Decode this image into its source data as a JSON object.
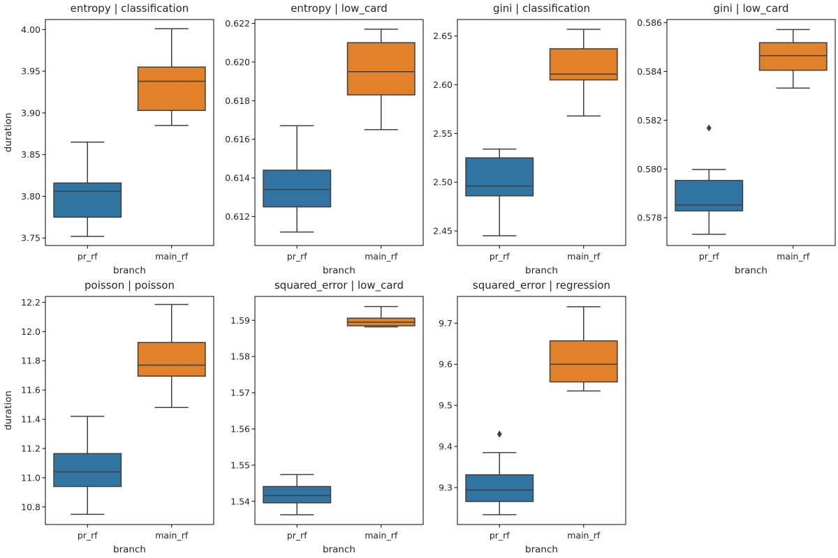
{
  "chart_data": [
    {
      "type": "box",
      "title": "entropy | classification",
      "xlabel": "branch",
      "ylabel": "duration",
      "categories": [
        "pr_rf",
        "main_rf"
      ],
      "ylim": [
        3.741,
        4.012
      ],
      "yticks": [
        3.75,
        3.8,
        3.85,
        3.9,
        3.95,
        4.0
      ],
      "ytick_labels": [
        "3.75",
        "3.80",
        "3.85",
        "3.90",
        "3.95",
        "4.00"
      ],
      "boxes": [
        {
          "name": "pr_rf",
          "whisker_low": 3.752,
          "q1": 3.775,
          "median": 3.806,
          "q3": 3.816,
          "whisker_high": 3.865,
          "outliers": []
        },
        {
          "name": "main_rf",
          "whisker_low": 3.885,
          "q1": 3.903,
          "median": 3.938,
          "q3": 3.955,
          "whisker_high": 4.001,
          "outliers": []
        }
      ]
    },
    {
      "type": "box",
      "title": "entropy | low_card",
      "xlabel": "branch",
      "ylabel": "",
      "categories": [
        "pr_rf",
        "main_rf"
      ],
      "ylim": [
        0.6105,
        0.6222
      ],
      "yticks": [
        0.612,
        0.614,
        0.616,
        0.618,
        0.62,
        0.622
      ],
      "ytick_labels": [
        "0.612",
        "0.614",
        "0.616",
        "0.618",
        "0.620",
        "0.622"
      ],
      "boxes": [
        {
          "name": "pr_rf",
          "whisker_low": 0.6112,
          "q1": 0.6125,
          "median": 0.6134,
          "q3": 0.6144,
          "whisker_high": 0.6167,
          "outliers": []
        },
        {
          "name": "main_rf",
          "whisker_low": 0.6165,
          "q1": 0.6183,
          "median": 0.6195,
          "q3": 0.621,
          "whisker_high": 0.6217,
          "outliers": []
        }
      ]
    },
    {
      "type": "box",
      "title": "gini | classification",
      "xlabel": "branch",
      "ylabel": "",
      "categories": [
        "pr_rf",
        "main_rf"
      ],
      "ylim": [
        2.435,
        2.667
      ],
      "yticks": [
        2.45,
        2.5,
        2.55,
        2.6,
        2.65
      ],
      "ytick_labels": [
        "2.45",
        "2.50",
        "2.55",
        "2.60",
        "2.65"
      ],
      "boxes": [
        {
          "name": "pr_rf",
          "whisker_low": 2.445,
          "q1": 2.486,
          "median": 2.496,
          "q3": 2.525,
          "whisker_high": 2.534,
          "outliers": []
        },
        {
          "name": "main_rf",
          "whisker_low": 2.568,
          "q1": 2.605,
          "median": 2.611,
          "q3": 2.637,
          "whisker_high": 2.657,
          "outliers": []
        }
      ]
    },
    {
      "type": "box",
      "title": "gini | low_card",
      "xlabel": "branch",
      "ylabel": "",
      "categories": [
        "pr_rf",
        "main_rf"
      ],
      "ylim": [
        0.57686,
        0.58613
      ],
      "yticks": [
        0.578,
        0.58,
        0.582,
        0.584,
        0.586
      ],
      "ytick_labels": [
        "0.578",
        "0.580",
        "0.582",
        "0.584",
        "0.586"
      ],
      "boxes": [
        {
          "name": "pr_rf",
          "whisker_low": 0.57732,
          "q1": 0.57828,
          "median": 0.57852,
          "q3": 0.57953,
          "whisker_high": 0.57998,
          "outliers": [
            0.58168
          ]
        },
        {
          "name": "main_rf",
          "whisker_low": 0.58332,
          "q1": 0.58405,
          "median": 0.58465,
          "q3": 0.58518,
          "whisker_high": 0.58572,
          "outliers": []
        }
      ]
    },
    {
      "type": "box",
      "title": "poisson | poisson",
      "xlabel": "branch",
      "ylabel": "duration",
      "categories": [
        "pr_rf",
        "main_rf"
      ],
      "ylim": [
        10.68,
        12.24
      ],
      "yticks": [
        10.8,
        11.0,
        11.2,
        11.4,
        11.6,
        11.8,
        12.0,
        12.2
      ],
      "ytick_labels": [
        "10.8",
        "11.0",
        "11.2",
        "11.4",
        "11.6",
        "11.8",
        "12.0",
        "12.2"
      ],
      "boxes": [
        {
          "name": "pr_rf",
          "whisker_low": 10.75,
          "q1": 10.94,
          "median": 11.04,
          "q3": 11.165,
          "whisker_high": 11.42,
          "outliers": []
        },
        {
          "name": "main_rf",
          "whisker_low": 11.48,
          "q1": 11.695,
          "median": 11.77,
          "q3": 11.925,
          "whisker_high": 12.185,
          "outliers": []
        }
      ]
    },
    {
      "type": "box",
      "title": "squared_error | low_card",
      "xlabel": "branch",
      "ylabel": "",
      "categories": [
        "pr_rf",
        "main_rf"
      ],
      "ylim": [
        1.5336,
        1.5966
      ],
      "yticks": [
        1.54,
        1.55,
        1.56,
        1.57,
        1.58,
        1.59
      ],
      "ytick_labels": [
        "1.54",
        "1.55",
        "1.56",
        "1.57",
        "1.58",
        "1.59"
      ],
      "boxes": [
        {
          "name": "pr_rf",
          "whisker_low": 1.5363,
          "q1": 1.5396,
          "median": 1.5416,
          "q3": 1.5441,
          "whisker_high": 1.5474,
          "outliers": []
        },
        {
          "name": "main_rf",
          "whisker_low": 1.5882,
          "q1": 1.5885,
          "median": 1.5895,
          "q3": 1.5906,
          "whisker_high": 1.5938,
          "outliers": []
        }
      ]
    },
    {
      "type": "box",
      "title": "squared_error | regression",
      "xlabel": "branch",
      "ylabel": "",
      "categories": [
        "pr_rf",
        "main_rf"
      ],
      "ylim": [
        9.21,
        9.765
      ],
      "yticks": [
        9.3,
        9.4,
        9.5,
        9.6,
        9.7
      ],
      "ytick_labels": [
        "9.3",
        "9.4",
        "9.5",
        "9.6",
        "9.7"
      ],
      "boxes": [
        {
          "name": "pr_rf",
          "whisker_low": 9.234,
          "q1": 9.266,
          "median": 9.294,
          "q3": 9.331,
          "whisker_high": 9.385,
          "outliers": [
            9.43
          ]
        },
        {
          "name": "main_rf",
          "whisker_low": 9.535,
          "q1": 9.557,
          "median": 9.6,
          "q3": 9.657,
          "whisker_high": 9.74,
          "outliers": []
        }
      ]
    }
  ],
  "colors": {
    "pr_rf": "#3274a1",
    "main_rf": "#e1812c",
    "line": "#3f3f3f",
    "axis": "#000000"
  }
}
